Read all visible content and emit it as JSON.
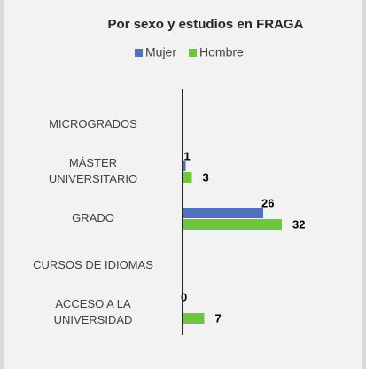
{
  "chart_data": {
    "type": "hbar",
    "title": "Por sexo y estudios en FRAGA",
    "categories": [
      "MICROGRADOS",
      "MÁSTER\nUNIVERSITARIO",
      "GRADO",
      "CURSOS DE IDIOMAS",
      "ACCESO A LA\nUNIVERSIDAD"
    ],
    "series": [
      {
        "name": "Mujer",
        "color": "#4f6fbf",
        "values": [
          null,
          1,
          26,
          null,
          0
        ]
      },
      {
        "name": "Hombre",
        "color": "#6ec63f",
        "values": [
          null,
          3,
          32,
          null,
          7
        ]
      }
    ],
    "legend": "top"
  }
}
